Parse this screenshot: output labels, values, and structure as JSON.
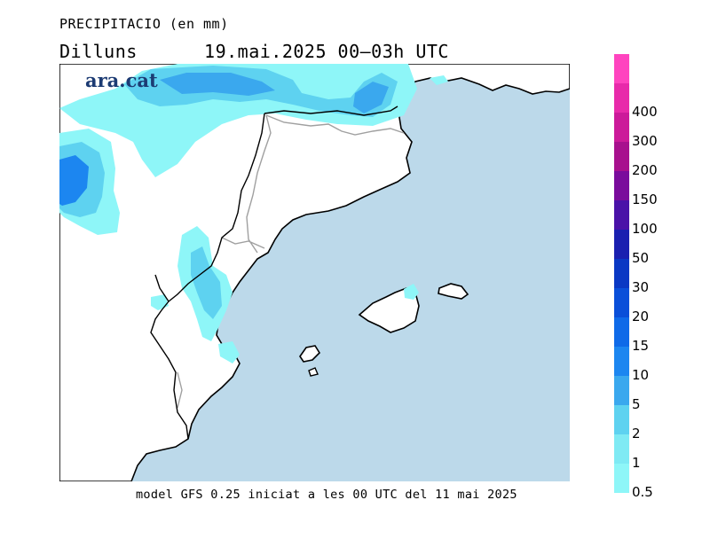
{
  "header": {
    "title": "PRECIPITACIO (en mm)",
    "day": "Dilluns",
    "datetime": "19.mai.2025 00–03h UTC"
  },
  "logo": {
    "text": "ara.cat"
  },
  "footer": {
    "text": "model GFS 0.25 iniciat a les 00 UTC del 11 mai 2025"
  },
  "legend": {
    "levels": [
      {
        "label": "0.5",
        "color": "#8ef6f8"
      },
      {
        "label": "1",
        "color": "#7feaf4"
      },
      {
        "label": "2",
        "color": "#5ed2f0"
      },
      {
        "label": "5",
        "color": "#3aa8ee"
      },
      {
        "label": "10",
        "color": "#1c86f0"
      },
      {
        "label": "15",
        "color": "#0f6ae8"
      },
      {
        "label": "20",
        "color": "#0a4fd9"
      },
      {
        "label": "30",
        "color": "#0a38c4"
      },
      {
        "label": "50",
        "color": "#1a20b0"
      },
      {
        "label": "100",
        "color": "#4a12a8"
      },
      {
        "label": "150",
        "color": "#7a0c9c"
      },
      {
        "label": "200",
        "color": "#a8108e"
      },
      {
        "label": "300",
        "color": "#cc1a9a"
      },
      {
        "label": "400",
        "color": "#e82aaa"
      },
      {
        "label": "",
        "color": "#ff44bf"
      }
    ]
  },
  "colors": {
    "sea": "#bcd9ea",
    "land": "#ffffff",
    "coast": "#000000",
    "border": "#a0a0a0"
  }
}
